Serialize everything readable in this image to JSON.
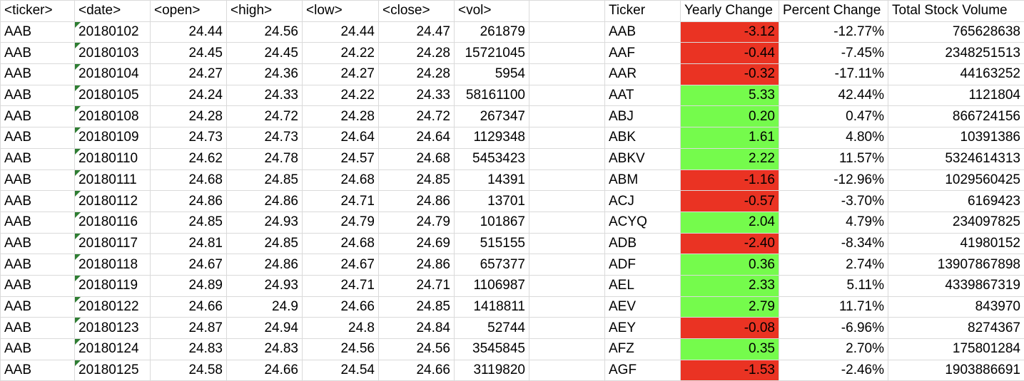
{
  "sheet": {
    "left_table": {
      "headers": [
        "<ticker>",
        "<date>",
        "<open>",
        "<high>",
        "<low>",
        "<close>",
        "<vol>"
      ],
      "rows": [
        [
          "AAB",
          "20180102",
          "24.44",
          "24.56",
          "24.44",
          "24.47",
          "261879"
        ],
        [
          "AAB",
          "20180103",
          "24.45",
          "24.45",
          "24.22",
          "24.28",
          "15721045"
        ],
        [
          "AAB",
          "20180104",
          "24.27",
          "24.36",
          "24.27",
          "24.28",
          "5954"
        ],
        [
          "AAB",
          "20180105",
          "24.24",
          "24.33",
          "24.22",
          "24.33",
          "58161100"
        ],
        [
          "AAB",
          "20180108",
          "24.28",
          "24.72",
          "24.28",
          "24.72",
          "267347"
        ],
        [
          "AAB",
          "20180109",
          "24.73",
          "24.73",
          "24.64",
          "24.64",
          "1129348"
        ],
        [
          "AAB",
          "20180110",
          "24.62",
          "24.78",
          "24.57",
          "24.68",
          "5453423"
        ],
        [
          "AAB",
          "20180111",
          "24.68",
          "24.85",
          "24.68",
          "24.85",
          "14391"
        ],
        [
          "AAB",
          "20180112",
          "24.86",
          "24.86",
          "24.71",
          "24.86",
          "13701"
        ],
        [
          "AAB",
          "20180116",
          "24.85",
          "24.93",
          "24.79",
          "24.79",
          "101867"
        ],
        [
          "AAB",
          "20180117",
          "24.81",
          "24.85",
          "24.68",
          "24.69",
          "515155"
        ],
        [
          "AAB",
          "20180118",
          "24.67",
          "24.86",
          "24.67",
          "24.86",
          "657377"
        ],
        [
          "AAB",
          "20180119",
          "24.89",
          "24.93",
          "24.71",
          "24.71",
          "1106987"
        ],
        [
          "AAB",
          "20180122",
          "24.66",
          "24.9",
          "24.66",
          "24.85",
          "1418811"
        ],
        [
          "AAB",
          "20180123",
          "24.87",
          "24.94",
          "24.8",
          "24.84",
          "52744"
        ],
        [
          "AAB",
          "20180124",
          "24.83",
          "24.83",
          "24.56",
          "24.56",
          "3545845"
        ],
        [
          "AAB",
          "20180125",
          "24.58",
          "24.66",
          "24.54",
          "24.66",
          "3119820"
        ]
      ]
    },
    "right_table": {
      "headers": [
        "Ticker",
        "Yearly Change",
        "Percent Change",
        "Total Stock Volume"
      ],
      "rows": [
        [
          "AAB",
          "-3.12",
          "-12.77%",
          "765628638"
        ],
        [
          "AAF",
          "-0.44",
          "-7.45%",
          "2348251513"
        ],
        [
          "AAR",
          "-0.32",
          "-17.11%",
          "44163252"
        ],
        [
          "AAT",
          "5.33",
          "42.44%",
          "1121804"
        ],
        [
          "ABJ",
          "0.20",
          "0.47%",
          "866724156"
        ],
        [
          "ABK",
          "1.61",
          "4.80%",
          "10391386"
        ],
        [
          "ABKV",
          "2.22",
          "11.57%",
          "5324614313"
        ],
        [
          "ABM",
          "-1.16",
          "-12.96%",
          "1029560425"
        ],
        [
          "ACJ",
          "-0.57",
          "-3.70%",
          "6169423"
        ],
        [
          "ACYQ",
          "2.04",
          "4.79%",
          "234097825"
        ],
        [
          "ADB",
          "-2.40",
          "-8.34%",
          "41980152"
        ],
        [
          "ADF",
          "0.36",
          "2.74%",
          "13907867898"
        ],
        [
          "AEL",
          "2.33",
          "5.11%",
          "4339867319"
        ],
        [
          "AEV",
          "2.79",
          "11.71%",
          "843970"
        ],
        [
          "AEY",
          "-0.08",
          "-6.96%",
          "8274367"
        ],
        [
          "AFZ",
          "0.35",
          "2.70%",
          "175801284"
        ],
        [
          "AGF",
          "-1.53",
          "-2.46%",
          "1903886691"
        ]
      ]
    }
  }
}
